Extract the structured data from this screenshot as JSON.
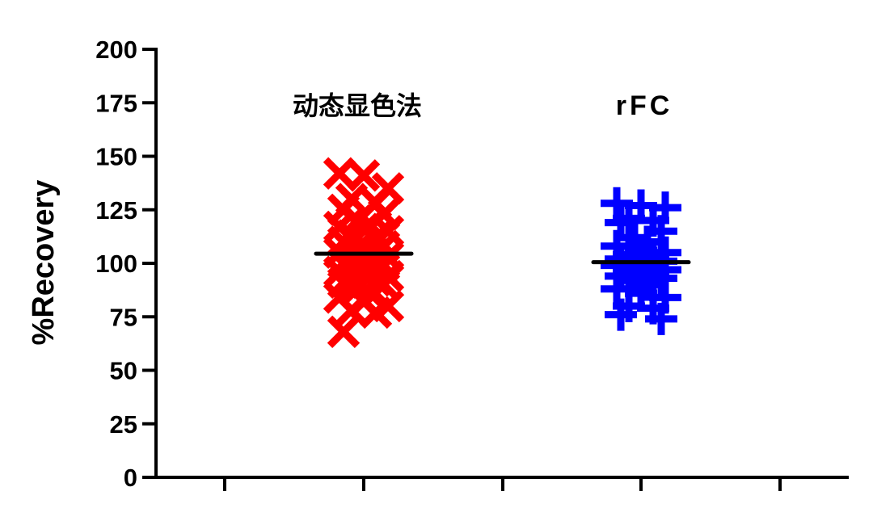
{
  "chart_data": {
    "type": "scatter",
    "ylabel": "%Recovery",
    "xlabel": "",
    "ylim": [
      0,
      200
    ],
    "yticks": [
      "0",
      "25",
      "50",
      "75",
      "100",
      "125",
      "150",
      "175",
      "200"
    ],
    "grid": false,
    "series": [
      {
        "name": "动态显色法",
        "color": "#ff0000",
        "marker": "x",
        "mean": 104.5,
        "values": [
          142,
          141,
          135,
          130,
          128,
          125,
          123,
          120,
          118,
          117,
          116,
          115,
          113,
          112,
          110,
          108,
          107,
          106,
          105,
          104,
          103,
          102,
          101,
          100,
          99,
          98,
          97,
          96,
          95,
          94,
          93,
          92,
          91,
          90,
          88,
          86,
          84,
          82,
          80,
          78,
          77,
          68
        ]
      },
      {
        "name": "rFC",
        "color": "#0000ff",
        "marker": "+",
        "mean": 100.5,
        "values": [
          128,
          127,
          126,
          121,
          120,
          119,
          115,
          112,
          110,
          108,
          106,
          105,
          104,
          103,
          102,
          101,
          100,
          100,
          99,
          98,
          97,
          96,
          95,
          94,
          93,
          92,
          90,
          88,
          86,
          84,
          80,
          79,
          76,
          74
        ]
      }
    ]
  }
}
